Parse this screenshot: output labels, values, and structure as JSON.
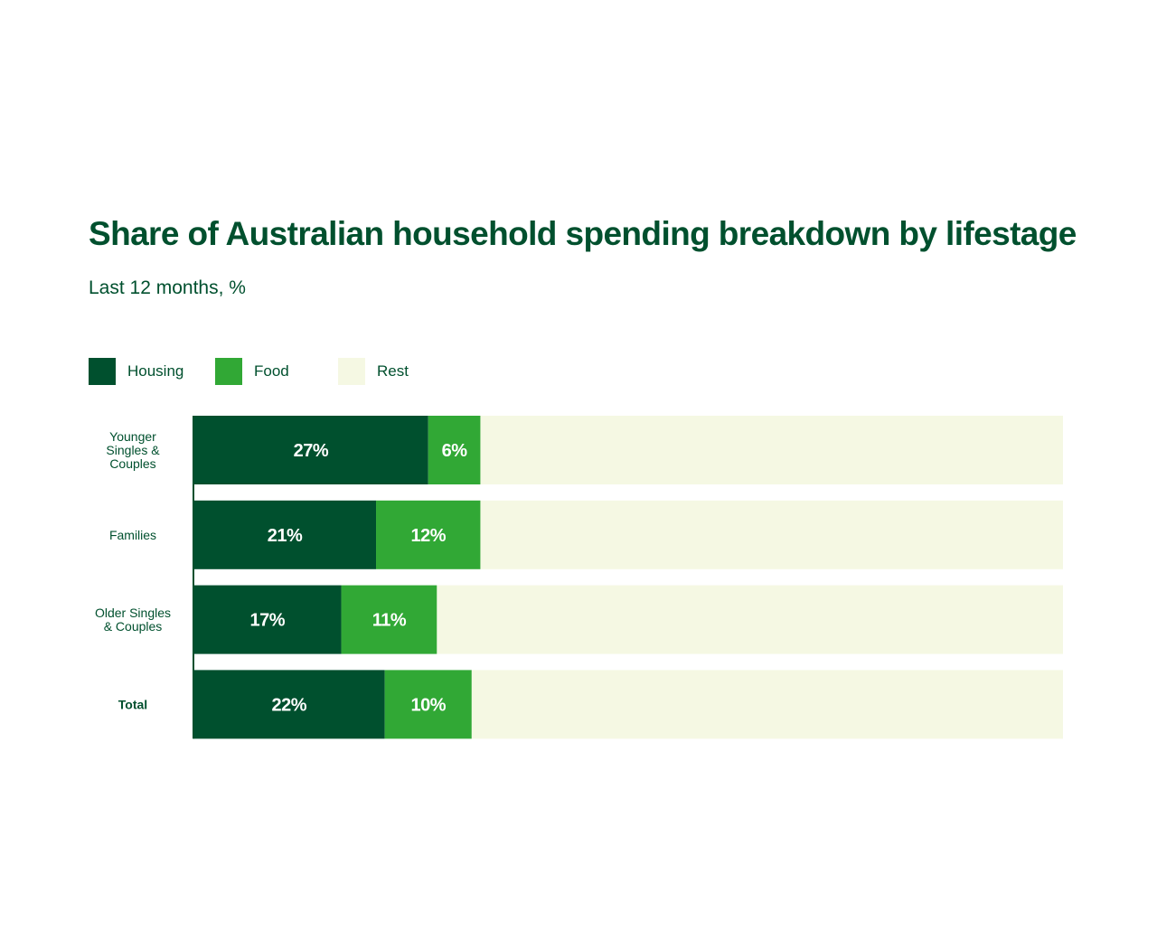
{
  "chart_data": {
    "type": "bar",
    "orientation": "horizontal",
    "stacked": true,
    "title": "Share of Australian household spending breakdown by lifestage",
    "subtitle": "Last 12 months, %",
    "categories": [
      [
        "Younger",
        "Singles &",
        "Couples"
      ],
      [
        "Families"
      ],
      [
        "Older Singles",
        "& Couples"
      ],
      [
        "Total"
      ]
    ],
    "bold_categories": [
      3
    ],
    "series": [
      {
        "name": "Housing",
        "color": "#00502e",
        "values": [
          27,
          21,
          17,
          22
        ],
        "labels": [
          "27%",
          "21%",
          "17%",
          "22%"
        ]
      },
      {
        "name": "Food",
        "color": "#31a835",
        "values": [
          6,
          12,
          11,
          10
        ],
        "labels": [
          "6%",
          "12%",
          "11%",
          "10%"
        ]
      },
      {
        "name": "Rest",
        "color": "#f5f8e3",
        "values": [
          67,
          67,
          72,
          68
        ],
        "labels": [
          "",
          "",
          "",
          ""
        ]
      }
    ],
    "xlim": [
      0,
      100
    ],
    "grid": false,
    "legend": "top-left"
  }
}
